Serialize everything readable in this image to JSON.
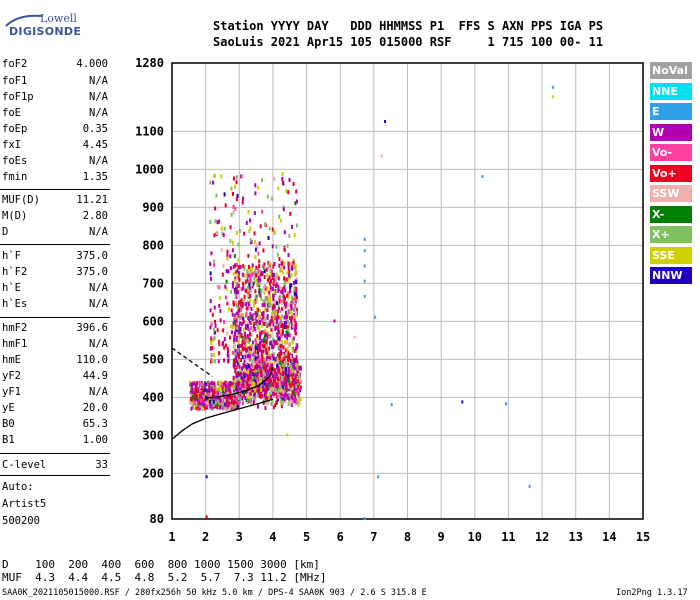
{
  "logo": {
    "line1": "Lowell",
    "line2": "DIGISONDE"
  },
  "header": {
    "row1": "Station YYYY DAY   DDD HHMMSS P1  FFS S AXN PPS IGA PS",
    "row2": "SaoLuis 2021 Apr15 105 015000 RSF     1 715 100 00- 11"
  },
  "scaled_params": [
    {
      "label": "foF2",
      "value": "4.000"
    },
    {
      "label": "foF1",
      "value": "N/A"
    },
    {
      "label": "foF1p",
      "value": "N/A"
    },
    {
      "label": "foE",
      "value": "N/A"
    },
    {
      "label": "foEp",
      "value": "0.35"
    },
    {
      "label": "fxI",
      "value": "4.45"
    },
    {
      "label": "foEs",
      "value": "N/A"
    },
    {
      "label": "fmin",
      "value": "1.35"
    },
    {
      "label": "MUF(D)",
      "value": "11.21"
    },
    {
      "label": "M(D)",
      "value": "2.80"
    },
    {
      "label": "D",
      "value": "N/A"
    },
    {
      "label": "h`F",
      "value": "375.0"
    },
    {
      "label": "h`F2",
      "value": "375.0"
    },
    {
      "label": "h`E",
      "value": "N/A"
    },
    {
      "label": "h`Es",
      "value": "N/A"
    },
    {
      "label": "hmF2",
      "value": "396.6"
    },
    {
      "label": "hmF1",
      "value": "N/A"
    },
    {
      "label": "hmE",
      "value": "110.0"
    },
    {
      "label": "yF2",
      "value": "44.9"
    },
    {
      "label": "yF1",
      "value": "N/A"
    },
    {
      "label": "yE",
      "value": "20.0"
    },
    {
      "label": "B0",
      "value": "65.3"
    },
    {
      "label": "B1",
      "value": "1.00"
    },
    {
      "label": "C-level",
      "value": "33"
    }
  ],
  "autoscaling": {
    "line1": "Auto:",
    "line2": "Artist5",
    "line3": "500200"
  },
  "muf_table": {
    "row1": "D    100  200  400  600  800 1000 1500 3000 [km]",
    "row2": "MUF  4.3  4.4  4.5  4.8  5.2  5.7  7.3 11.2 [MHz]"
  },
  "footer": {
    "left": "SAA0K_2021105015000.RSF / 280fx256h 50 kHz 5.0 km / DPS-4 SAA0K 903 / 2.6 S 315.8 E",
    "right": "Ion2Png 1.3.17"
  },
  "legend": [
    {
      "label": "NoVal",
      "color": "#a0a0a0"
    },
    {
      "label": "NNE",
      "color": "#00e0f0"
    },
    {
      "label": "E",
      "color": "#30a0e8"
    },
    {
      "label": "W",
      "color": "#b000b0"
    },
    {
      "label": "Vo-",
      "color": "#ff40a0"
    },
    {
      "label": "Vo+",
      "color": "#f00020"
    },
    {
      "label": "SSW",
      "color": "#f0b0b0"
    },
    {
      "label": "X-",
      "color": "#008000"
    },
    {
      "label": "X+",
      "color": "#80c060"
    },
    {
      "label": "SSE",
      "color": "#d0d000"
    },
    {
      "label": "NNW",
      "color": "#2000c0"
    }
  ],
  "chart_data": {
    "type": "scatter",
    "xlabel": "",
    "ylabel": "",
    "xlim": [
      1,
      15
    ],
    "ylim": [
      80,
      1280
    ],
    "x_ticks": [
      1,
      2,
      3,
      4,
      5,
      6,
      7,
      8,
      9,
      10,
      11,
      12,
      13,
      14,
      15
    ],
    "y_ticks": [
      80,
      200,
      300,
      400,
      500,
      600,
      700,
      800,
      900,
      1000,
      1100,
      1280
    ],
    "grid": true,
    "legend_position": "right",
    "profile_curve": {
      "color": "#000000",
      "points": [
        [
          1.0,
          290
        ],
        [
          1.3,
          312
        ],
        [
          1.6,
          330
        ],
        [
          2.0,
          345
        ],
        [
          2.5,
          358
        ],
        [
          3.0,
          370
        ],
        [
          3.5,
          382
        ],
        [
          4.0,
          395
        ]
      ]
    },
    "f2_trace": {
      "color": "#000000",
      "points": [
        [
          2.0,
          398
        ],
        [
          2.4,
          402
        ],
        [
          2.8,
          408
        ],
        [
          3.2,
          418
        ],
        [
          3.6,
          432
        ],
        [
          3.9,
          455
        ],
        [
          4.0,
          480
        ]
      ]
    },
    "dashed_curve": {
      "color": "#000000",
      "points": [
        [
          1.0,
          530
        ],
        [
          1.4,
          505
        ],
        [
          1.8,
          480
        ],
        [
          2.2,
          455
        ]
      ]
    },
    "main_cluster": {
      "region": {
        "x": [
          1.5,
          4.8
        ],
        "y": [
          380,
          1000
        ]
      },
      "dominant_sources": [
        "W",
        "Vo+",
        "SSE",
        "X+",
        "SSW",
        "NoVal",
        "Vo-",
        "NNW"
      ]
    },
    "isolated_points": [
      {
        "x": 6.7,
        "y": 820,
        "source": "E"
      },
      {
        "x": 6.7,
        "y": 790,
        "source": "E"
      },
      {
        "x": 6.7,
        "y": 750,
        "source": "E"
      },
      {
        "x": 6.7,
        "y": 710,
        "source": "E"
      },
      {
        "x": 6.7,
        "y": 670,
        "source": "E"
      },
      {
        "x": 7.0,
        "y": 615,
        "source": "E"
      },
      {
        "x": 7.3,
        "y": 1130,
        "source": "NNW"
      },
      {
        "x": 7.2,
        "y": 1040,
        "source": "SSW"
      },
      {
        "x": 7.5,
        "y": 385,
        "source": "E"
      },
      {
        "x": 9.6,
        "y": 392,
        "source": "NNW"
      },
      {
        "x": 10.2,
        "y": 985,
        "source": "E"
      },
      {
        "x": 10.9,
        "y": 387,
        "source": "E"
      },
      {
        "x": 11.6,
        "y": 170,
        "source": "E"
      },
      {
        "x": 12.3,
        "y": 1220,
        "source": "E"
      },
      {
        "x": 12.3,
        "y": 1195,
        "source": "SSE"
      },
      {
        "x": 6.7,
        "y": 85,
        "source": "E"
      },
      {
        "x": 7.1,
        "y": 195,
        "source": "E"
      },
      {
        "x": 2.0,
        "y": 195,
        "source": "NNW"
      },
      {
        "x": 2.0,
        "y": 90,
        "source": "Vo+"
      },
      {
        "x": 4.4,
        "y": 305,
        "source": "SSE"
      },
      {
        "x": 6.4,
        "y": 562,
        "source": "SSW"
      },
      {
        "x": 5.8,
        "y": 605,
        "source": "W"
      }
    ]
  }
}
